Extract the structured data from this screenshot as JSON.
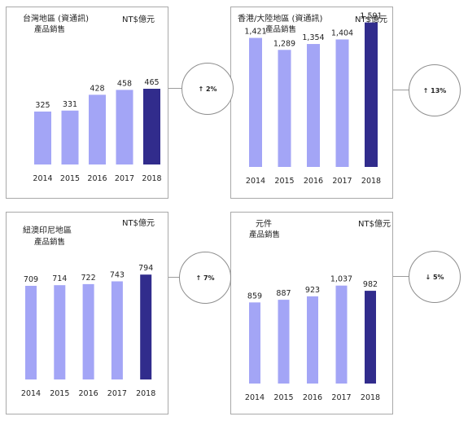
{
  "chart_data": [
    {
      "type": "bar",
      "title": "台灣地區 (資通訊)",
      "subtitle": "產品銷售",
      "unit": "NT$億元",
      "categories": [
        "2014",
        "2015",
        "2016",
        "2017",
        "2018"
      ],
      "values": [
        325,
        331,
        428,
        458,
        465
      ],
      "value_labels": [
        "325",
        "331",
        "428",
        "458",
        "465"
      ],
      "ylim": [
        0,
        1700
      ],
      "grid": false,
      "change": "↑ 2%"
    },
    {
      "type": "bar",
      "title": "香港/大陸地區 (資通訊)",
      "subtitle": "產品銷售",
      "unit": "NT$億元",
      "categories": [
        "2014",
        "2015",
        "2016",
        "2017",
        "2018"
      ],
      "values": [
        1421,
        1289,
        1354,
        1404,
        1591
      ],
      "value_labels": [
        "1,421",
        "1,289",
        "1,354",
        "1,404",
        "1,591"
      ],
      "ylim": [
        0,
        1700
      ],
      "grid": false,
      "change": "↑ 13%"
    },
    {
      "type": "bar",
      "title": "紐澳印尼地區",
      "subtitle": "產品銷售",
      "unit": "NT$億元",
      "categories": [
        "2014",
        "2015",
        "2016",
        "2017",
        "2018"
      ],
      "values": [
        709,
        714,
        722,
        743,
        794
      ],
      "value_labels": [
        "709",
        "714",
        "722",
        "743",
        "794"
      ],
      "ylim": [
        0,
        1000
      ],
      "grid": false,
      "change": "↑ 7%"
    },
    {
      "type": "bar",
      "title": "元件",
      "subtitle": "產品銷售",
      "unit": "NT$億元",
      "categories": [
        "2014",
        "2015",
        "2016",
        "2017",
        "2018"
      ],
      "values": [
        859,
        887,
        923,
        1037,
        982
      ],
      "value_labels": [
        "859",
        "887",
        "923",
        "1,037",
        "982"
      ],
      "ylim": [
        0,
        1150
      ],
      "grid": false,
      "change": "↓ 5%"
    }
  ],
  "colors": {
    "bar": "#a3a5f6",
    "bar_highlight": "#312c8c",
    "panel_border": "#a9a9a9",
    "connector": "#9c9c9c"
  }
}
